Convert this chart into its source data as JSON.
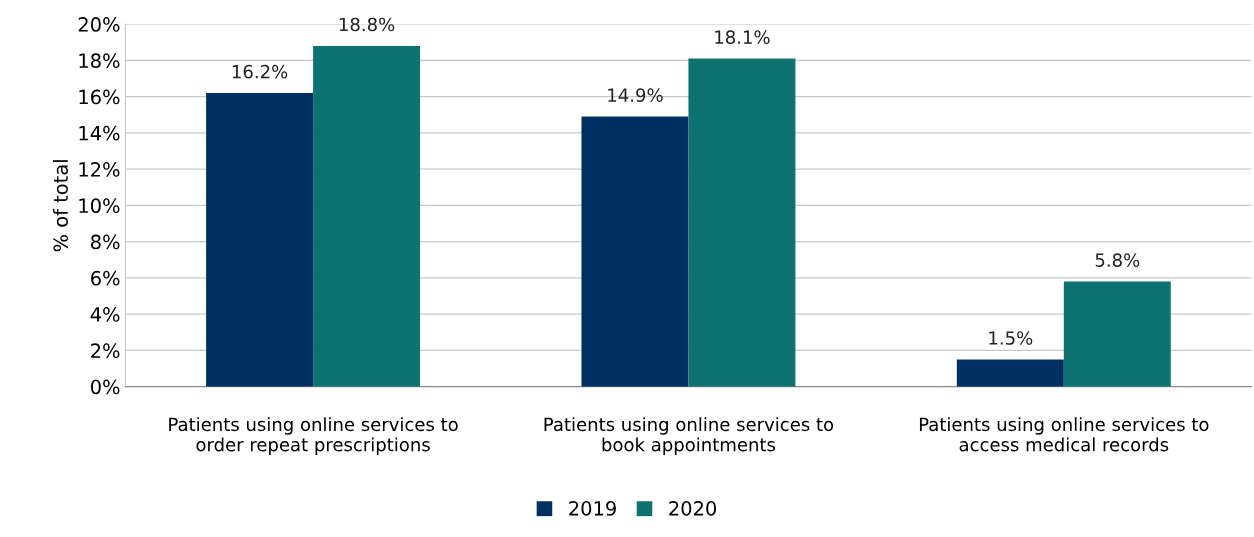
{
  "chart_data": {
    "type": "bar",
    "ylabel": "% of total",
    "categories": [
      "Patients using online services to\norder repeat prescriptions",
      "Patients using online services to\nbook appointments",
      "Patients using online services to\naccess medical records"
    ],
    "series": [
      {
        "name": "2019",
        "color": "#003063",
        "values": [
          16.2,
          14.9,
          1.5
        ],
        "value_labels": [
          "16.2%",
          "14.9%",
          "1.5%"
        ]
      },
      {
        "name": "2020",
        "color": "#0e7370",
        "values": [
          18.8,
          18.1,
          5.8
        ],
        "value_labels": [
          "18.8%",
          "18.1%",
          "5.8%"
        ]
      }
    ],
    "ylim": [
      0,
      20
    ],
    "yticks": [
      {
        "value": 0,
        "label": "0%"
      },
      {
        "value": 2,
        "label": "2%"
      },
      {
        "value": 4,
        "label": "4%"
      },
      {
        "value": 6,
        "label": "6%"
      },
      {
        "value": 8,
        "label": "8%"
      },
      {
        "value": 10,
        "label": "10%"
      },
      {
        "value": 12,
        "label": "12%"
      },
      {
        "value": 14,
        "label": "14%"
      },
      {
        "value": 16,
        "label": "16%"
      },
      {
        "value": 18,
        "label": "18%"
      },
      {
        "value": 20,
        "label": "20%"
      }
    ],
    "grid": "y",
    "legend": "bottom"
  }
}
